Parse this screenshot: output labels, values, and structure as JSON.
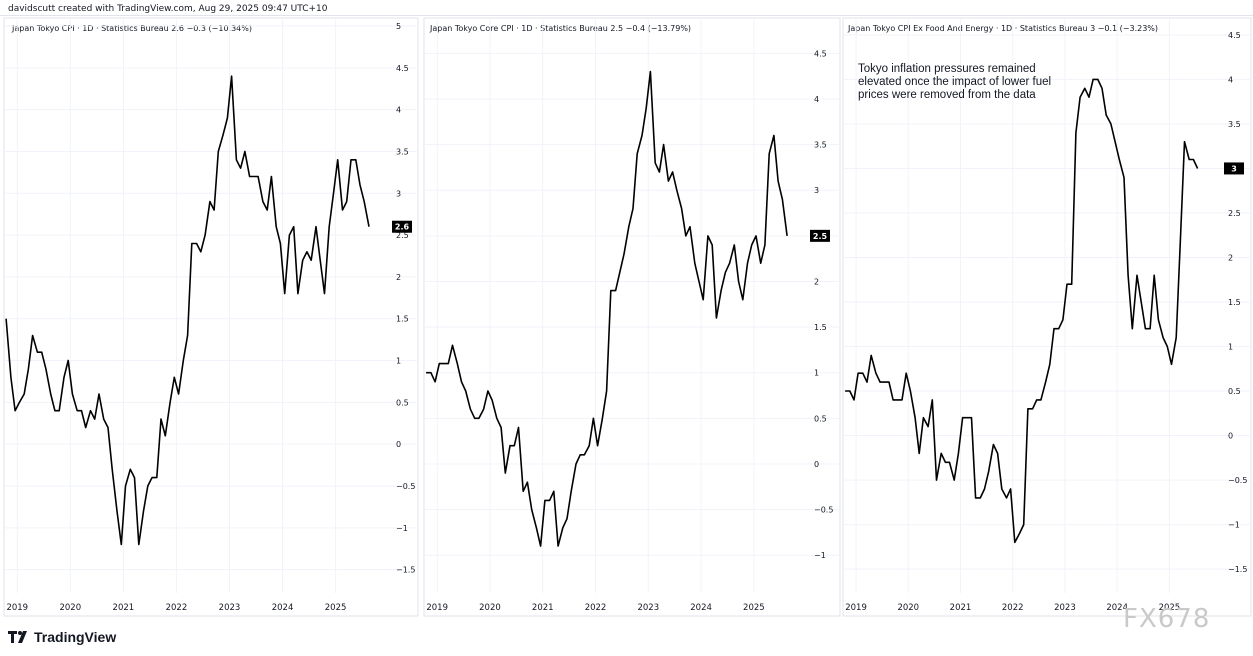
{
  "header": {
    "attribution": "davidscutt created with TradingView.com, Aug 29, 2025 09:47 UTC+10"
  },
  "branding": {
    "logo_text": "TradingView",
    "watermark": "FX678"
  },
  "annotation": "Tokyo inflation pressures remained elevated once the impact of lower fuel prices were removed from the data",
  "colors": {
    "line": "#000000",
    "grid": "#f0f3fa",
    "border": "#e0e3eb",
    "badge": "#000000"
  },
  "chart_data": [
    {
      "type": "line",
      "title": "Japan Tokyo CPI · 1D · Statistics Bureau  2.6  −0.3 (−10.34%)",
      "ylim": [
        -1.6,
        5
      ],
      "yticks": [
        -1.5,
        -1,
        -0.5,
        0,
        0.5,
        1,
        1.5,
        2,
        2.5,
        3,
        3.5,
        4,
        4.5,
        5
      ],
      "ytick_labels": [
        "−1.5",
        "−1",
        "−0.5",
        "0",
        "0.5",
        "1",
        "1.5",
        "2",
        "2.5",
        "3",
        "3.5",
        "4",
        "4.5",
        "5"
      ],
      "xlim": [
        2018.75,
        2025.95
      ],
      "xticks": [
        2019,
        2020,
        2021,
        2022,
        2023,
        2024,
        2025
      ],
      "last_value_label": "2.6",
      "last_value": 2.6,
      "points": [
        [
          2018.79,
          1.5
        ],
        [
          2018.88,
          0.8
        ],
        [
          2018.96,
          0.4
        ],
        [
          2019.04,
          0.5
        ],
        [
          2019.13,
          0.6
        ],
        [
          2019.21,
          0.9
        ],
        [
          2019.29,
          1.3
        ],
        [
          2019.38,
          1.1
        ],
        [
          2019.46,
          1.1
        ],
        [
          2019.54,
          0.9
        ],
        [
          2019.63,
          0.6
        ],
        [
          2019.71,
          0.4
        ],
        [
          2019.79,
          0.4
        ],
        [
          2019.88,
          0.8
        ],
        [
          2019.96,
          1.0
        ],
        [
          2020.04,
          0.6
        ],
        [
          2020.13,
          0.4
        ],
        [
          2020.21,
          0.4
        ],
        [
          2020.29,
          0.2
        ],
        [
          2020.38,
          0.4
        ],
        [
          2020.46,
          0.3
        ],
        [
          2020.54,
          0.6
        ],
        [
          2020.63,
          0.3
        ],
        [
          2020.71,
          0.2
        ],
        [
          2020.79,
          -0.3
        ],
        [
          2020.88,
          -0.8
        ],
        [
          2020.96,
          -1.2
        ],
        [
          2021.04,
          -0.5
        ],
        [
          2021.13,
          -0.3
        ],
        [
          2021.21,
          -0.4
        ],
        [
          2021.29,
          -1.2
        ],
        [
          2021.38,
          -0.8
        ],
        [
          2021.46,
          -0.5
        ],
        [
          2021.54,
          -0.4
        ],
        [
          2021.63,
          -0.4
        ],
        [
          2021.71,
          0.3
        ],
        [
          2021.79,
          0.1
        ],
        [
          2021.88,
          0.5
        ],
        [
          2021.96,
          0.8
        ],
        [
          2022.04,
          0.6
        ],
        [
          2022.13,
          1.0
        ],
        [
          2022.21,
          1.3
        ],
        [
          2022.29,
          2.4
        ],
        [
          2022.38,
          2.4
        ],
        [
          2022.46,
          2.3
        ],
        [
          2022.54,
          2.5
        ],
        [
          2022.63,
          2.9
        ],
        [
          2022.71,
          2.8
        ],
        [
          2022.79,
          3.5
        ],
        [
          2022.88,
          3.7
        ],
        [
          2022.96,
          3.9
        ],
        [
          2023.04,
          4.4
        ],
        [
          2023.13,
          3.4
        ],
        [
          2023.21,
          3.3
        ],
        [
          2023.29,
          3.5
        ],
        [
          2023.38,
          3.2
        ],
        [
          2023.46,
          3.2
        ],
        [
          2023.54,
          3.2
        ],
        [
          2023.63,
          2.9
        ],
        [
          2023.71,
          2.8
        ],
        [
          2023.79,
          3.2
        ],
        [
          2023.88,
          2.6
        ],
        [
          2023.96,
          2.4
        ],
        [
          2024.04,
          1.8
        ],
        [
          2024.13,
          2.5
        ],
        [
          2024.21,
          2.6
        ],
        [
          2024.29,
          1.8
        ],
        [
          2024.38,
          2.2
        ],
        [
          2024.46,
          2.3
        ],
        [
          2024.54,
          2.2
        ],
        [
          2024.63,
          2.6
        ],
        [
          2024.71,
          2.2
        ],
        [
          2024.79,
          1.8
        ],
        [
          2024.88,
          2.6
        ],
        [
          2024.96,
          3.0
        ],
        [
          2025.04,
          3.4
        ],
        [
          2025.13,
          2.8
        ],
        [
          2025.21,
          2.9
        ],
        [
          2025.29,
          3.4
        ],
        [
          2025.38,
          3.4
        ],
        [
          2025.46,
          3.1
        ],
        [
          2025.54,
          2.9
        ],
        [
          2025.63,
          2.6
        ]
      ]
    },
    {
      "type": "line",
      "title": "Japan Tokyo Core CPI · 1D · Statistics Bureau  2.5  −0.4 (−13.79%)",
      "ylim": [
        -1.25,
        4.8
      ],
      "yticks": [
        -1,
        -0.5,
        0,
        0.5,
        1,
        1.5,
        2,
        2.5,
        3,
        3.5,
        4,
        4.5
      ],
      "ytick_labels": [
        "−1",
        "−0.5",
        "0",
        "0.5",
        "1",
        "1.5",
        "2",
        "2.5",
        "3",
        "3.5",
        "4",
        "4.5"
      ],
      "xlim": [
        2018.75,
        2025.95
      ],
      "xticks": [
        2019,
        2020,
        2021,
        2022,
        2023,
        2024,
        2025
      ],
      "last_value_label": "2.5",
      "last_value": 2.5,
      "points": [
        [
          2018.79,
          1.0
        ],
        [
          2018.88,
          1.0
        ],
        [
          2018.96,
          0.9
        ],
        [
          2019.04,
          1.1
        ],
        [
          2019.13,
          1.1
        ],
        [
          2019.21,
          1.1
        ],
        [
          2019.29,
          1.3
        ],
        [
          2019.38,
          1.1
        ],
        [
          2019.46,
          0.9
        ],
        [
          2019.54,
          0.8
        ],
        [
          2019.63,
          0.6
        ],
        [
          2019.71,
          0.5
        ],
        [
          2019.79,
          0.5
        ],
        [
          2019.88,
          0.6
        ],
        [
          2019.96,
          0.8
        ],
        [
          2020.04,
          0.7
        ],
        [
          2020.13,
          0.5
        ],
        [
          2020.21,
          0.4
        ],
        [
          2020.29,
          -0.1
        ],
        [
          2020.38,
          0.2
        ],
        [
          2020.46,
          0.2
        ],
        [
          2020.54,
          0.4
        ],
        [
          2020.63,
          -0.3
        ],
        [
          2020.71,
          -0.2
        ],
        [
          2020.79,
          -0.5
        ],
        [
          2020.88,
          -0.7
        ],
        [
          2020.96,
          -0.9
        ],
        [
          2021.04,
          -0.4
        ],
        [
          2021.13,
          -0.4
        ],
        [
          2021.21,
          -0.3
        ],
        [
          2021.29,
          -0.9
        ],
        [
          2021.38,
          -0.7
        ],
        [
          2021.46,
          -0.6
        ],
        [
          2021.54,
          -0.3
        ],
        [
          2021.63,
          0.0
        ],
        [
          2021.71,
          0.1
        ],
        [
          2021.79,
          0.1
        ],
        [
          2021.88,
          0.2
        ],
        [
          2021.96,
          0.5
        ],
        [
          2022.04,
          0.2
        ],
        [
          2022.13,
          0.5
        ],
        [
          2022.21,
          0.8
        ],
        [
          2022.29,
          1.9
        ],
        [
          2022.38,
          1.9
        ],
        [
          2022.46,
          2.1
        ],
        [
          2022.54,
          2.3
        ],
        [
          2022.63,
          2.6
        ],
        [
          2022.71,
          2.8
        ],
        [
          2022.79,
          3.4
        ],
        [
          2022.88,
          3.6
        ],
        [
          2022.96,
          3.9
        ],
        [
          2023.04,
          4.3
        ],
        [
          2023.13,
          3.3
        ],
        [
          2023.21,
          3.2
        ],
        [
          2023.29,
          3.5
        ],
        [
          2023.38,
          3.1
        ],
        [
          2023.46,
          3.2
        ],
        [
          2023.54,
          3.0
        ],
        [
          2023.63,
          2.8
        ],
        [
          2023.71,
          2.5
        ],
        [
          2023.79,
          2.6
        ],
        [
          2023.88,
          2.2
        ],
        [
          2023.96,
          2.0
        ],
        [
          2024.04,
          1.8
        ],
        [
          2024.13,
          2.5
        ],
        [
          2024.21,
          2.4
        ],
        [
          2024.29,
          1.6
        ],
        [
          2024.38,
          1.9
        ],
        [
          2024.46,
          2.1
        ],
        [
          2024.54,
          2.2
        ],
        [
          2024.63,
          2.4
        ],
        [
          2024.71,
          2.0
        ],
        [
          2024.79,
          1.8
        ],
        [
          2024.88,
          2.2
        ],
        [
          2024.96,
          2.4
        ],
        [
          2025.04,
          2.5
        ],
        [
          2025.13,
          2.2
        ],
        [
          2025.21,
          2.4
        ],
        [
          2025.29,
          3.4
        ],
        [
          2025.38,
          3.6
        ],
        [
          2025.46,
          3.1
        ],
        [
          2025.54,
          2.9
        ],
        [
          2025.63,
          2.5
        ]
      ]
    },
    {
      "type": "line",
      "title": "Japan Tokyo CPI Ex Food And Energy · 1D · Statistics Bureau  3  −0.1 (−3.23%)",
      "ylim": [
        -1.6,
        4.6
      ],
      "yticks": [
        -1.5,
        -1,
        -0.5,
        0,
        0.5,
        1,
        1.5,
        2,
        2.5,
        3,
        3.5,
        4,
        4.5
      ],
      "ytick_labels": [
        "−1.5",
        "−1",
        "−0.5",
        "0",
        "0.5",
        "1",
        "1.5",
        "2",
        "2.5",
        "3",
        "3.5",
        "4",
        "4.5"
      ],
      "xlim": [
        2018.75,
        2025.95
      ],
      "xticks": [
        2019,
        2020,
        2021,
        2022,
        2023,
        2024,
        2025
      ],
      "last_value_label": "3",
      "last_value": 3.0,
      "points": [
        [
          2018.79,
          0.5
        ],
        [
          2018.88,
          0.5
        ],
        [
          2018.96,
          0.4
        ],
        [
          2019.04,
          0.7
        ],
        [
          2019.13,
          0.7
        ],
        [
          2019.21,
          0.6
        ],
        [
          2019.29,
          0.9
        ],
        [
          2019.38,
          0.7
        ],
        [
          2019.46,
          0.6
        ],
        [
          2019.54,
          0.6
        ],
        [
          2019.63,
          0.6
        ],
        [
          2019.71,
          0.4
        ],
        [
          2019.79,
          0.4
        ],
        [
          2019.88,
          0.4
        ],
        [
          2019.96,
          0.7
        ],
        [
          2020.04,
          0.5
        ],
        [
          2020.13,
          0.2
        ],
        [
          2020.21,
          -0.2
        ],
        [
          2020.29,
          0.2
        ],
        [
          2020.38,
          0.1
        ],
        [
          2020.46,
          0.4
        ],
        [
          2020.54,
          -0.5
        ],
        [
          2020.63,
          -0.2
        ],
        [
          2020.71,
          -0.3
        ],
        [
          2020.79,
          -0.3
        ],
        [
          2020.88,
          -0.5
        ],
        [
          2020.96,
          -0.2
        ],
        [
          2021.04,
          0.2
        ],
        [
          2021.13,
          0.2
        ],
        [
          2021.21,
          0.2
        ],
        [
          2021.29,
          -0.7
        ],
        [
          2021.38,
          -0.7
        ],
        [
          2021.46,
          -0.6
        ],
        [
          2021.54,
          -0.4
        ],
        [
          2021.63,
          -0.1
        ],
        [
          2021.71,
          -0.2
        ],
        [
          2021.79,
          -0.6
        ],
        [
          2021.88,
          -0.7
        ],
        [
          2021.96,
          -0.6
        ],
        [
          2022.04,
          -1.2
        ],
        [
          2022.13,
          -1.1
        ],
        [
          2022.21,
          -1.0
        ],
        [
          2022.29,
          0.3
        ],
        [
          2022.38,
          0.3
        ],
        [
          2022.46,
          0.4
        ],
        [
          2022.54,
          0.4
        ],
        [
          2022.63,
          0.6
        ],
        [
          2022.71,
          0.8
        ],
        [
          2022.79,
          1.2
        ],
        [
          2022.88,
          1.2
        ],
        [
          2022.96,
          1.3
        ],
        [
          2023.04,
          1.7
        ],
        [
          2023.13,
          1.7
        ],
        [
          2023.21,
          3.4
        ],
        [
          2023.29,
          3.8
        ],
        [
          2023.38,
          3.9
        ],
        [
          2023.46,
          3.8
        ],
        [
          2023.54,
          4.0
        ],
        [
          2023.63,
          4.0
        ],
        [
          2023.71,
          3.9
        ],
        [
          2023.79,
          3.6
        ],
        [
          2023.88,
          3.5
        ],
        [
          2023.96,
          3.3
        ],
        [
          2024.04,
          3.1
        ],
        [
          2024.13,
          2.9
        ],
        [
          2024.21,
          1.8
        ],
        [
          2024.29,
          1.2
        ],
        [
          2024.38,
          1.8
        ],
        [
          2024.46,
          1.5
        ],
        [
          2024.54,
          1.2
        ],
        [
          2024.63,
          1.2
        ],
        [
          2024.71,
          1.8
        ],
        [
          2024.79,
          1.3
        ],
        [
          2024.88,
          1.1
        ],
        [
          2024.96,
          1.0
        ],
        [
          2025.04,
          0.8
        ],
        [
          2025.13,
          1.1
        ],
        [
          2025.21,
          2.2
        ],
        [
          2025.29,
          3.3
        ],
        [
          2025.38,
          3.1
        ],
        [
          2025.46,
          3.1
        ],
        [
          2025.54,
          3.0
        ]
      ]
    }
  ]
}
